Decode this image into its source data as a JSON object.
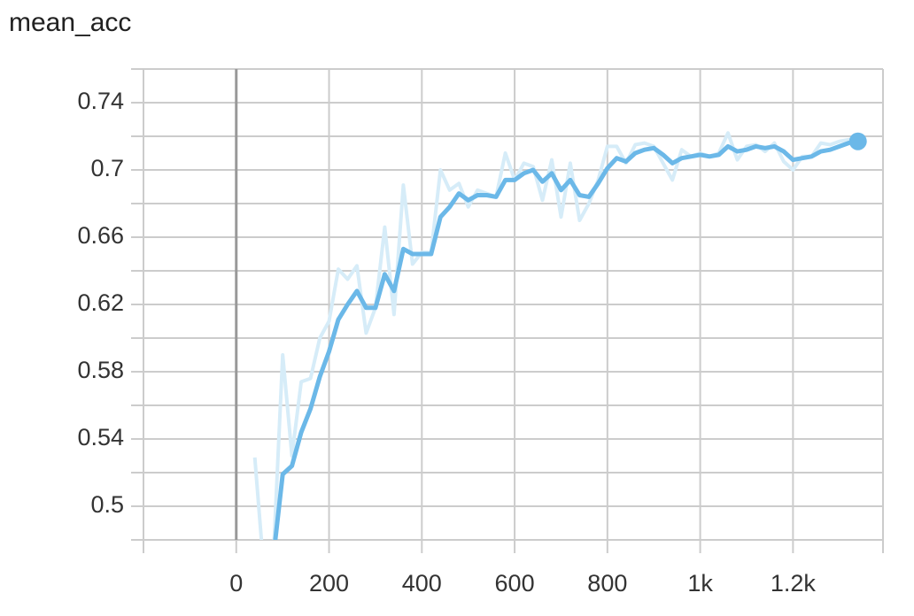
{
  "chart_data": {
    "type": "line",
    "title": "mean_acc",
    "x": [
      40,
      60,
      80,
      100,
      120,
      140,
      160,
      180,
      200,
      220,
      240,
      260,
      280,
      300,
      320,
      340,
      360,
      380,
      400,
      420,
      440,
      460,
      480,
      500,
      520,
      540,
      560,
      580,
      600,
      620,
      640,
      660,
      680,
      700,
      720,
      740,
      760,
      780,
      800,
      820,
      840,
      860,
      880,
      900,
      920,
      940,
      960,
      980,
      1000,
      1020,
      1040,
      1060,
      1080,
      1100,
      1120,
      1140,
      1160,
      1180,
      1200,
      1220,
      1240,
      1260,
      1280,
      1300,
      1320,
      1340
    ],
    "series": [
      {
        "color": "#d6ecf8",
        "values": [
          0.529,
          0.46,
          0.47,
          0.59,
          0.53,
          0.574,
          0.576,
          0.6,
          0.61,
          0.641,
          0.635,
          0.643,
          0.603,
          0.618,
          0.666,
          0.614,
          0.691,
          0.644,
          0.651,
          0.651,
          0.7,
          0.688,
          0.692,
          0.678,
          0.688,
          0.686,
          0.684,
          0.71,
          0.694,
          0.704,
          0.702,
          0.682,
          0.706,
          0.672,
          0.704,
          0.67,
          0.68,
          0.694,
          0.714,
          0.714,
          0.704,
          0.715,
          0.716,
          0.714,
          0.704,
          0.694,
          0.712,
          0.708,
          0.71,
          0.708,
          0.71,
          0.722,
          0.706,
          0.714,
          0.715,
          0.711,
          0.716,
          0.705,
          0.7,
          0.708,
          0.708,
          0.716,
          0.715,
          0.717,
          0.718,
          0.717
        ]
      },
      {
        "color": "#6bb8e8",
        "values": [
          null,
          null,
          0.47,
          0.519,
          0.524,
          0.544,
          0.558,
          0.577,
          0.592,
          0.611,
          0.62,
          0.628,
          0.618,
          0.618,
          0.638,
          0.628,
          0.653,
          0.65,
          0.65,
          0.65,
          0.672,
          0.678,
          0.686,
          0.682,
          0.685,
          0.685,
          0.684,
          0.694,
          0.694,
          0.698,
          0.7,
          0.693,
          0.698,
          0.688,
          0.694,
          0.685,
          0.684,
          0.692,
          0.701,
          0.707,
          0.705,
          0.71,
          0.712,
          0.713,
          0.709,
          0.704,
          0.707,
          0.708,
          0.709,
          0.708,
          0.709,
          0.714,
          0.711,
          0.712,
          0.714,
          0.713,
          0.714,
          0.711,
          0.706,
          0.707,
          0.708,
          0.711,
          0.712,
          0.714,
          0.716,
          0.717
        ]
      }
    ],
    "xlim": [
      -200,
      1394
    ],
    "xticks": [
      0,
      200,
      400,
      600,
      800,
      {
        "value": 1000,
        "label": "1k"
      },
      {
        "value": 1200,
        "label": "1.2k"
      }
    ],
    "ylim": [
      0.48,
      0.76
    ],
    "yticks": [
      0.5,
      0.54,
      0.58,
      0.62,
      0.66,
      0.7,
      0.74
    ],
    "ygrid": [
      0.48,
      0.5,
      0.52,
      0.54,
      0.56,
      0.58,
      0.6,
      0.62,
      0.64,
      0.66,
      0.68,
      0.7,
      0.72,
      0.74,
      0.76
    ]
  }
}
